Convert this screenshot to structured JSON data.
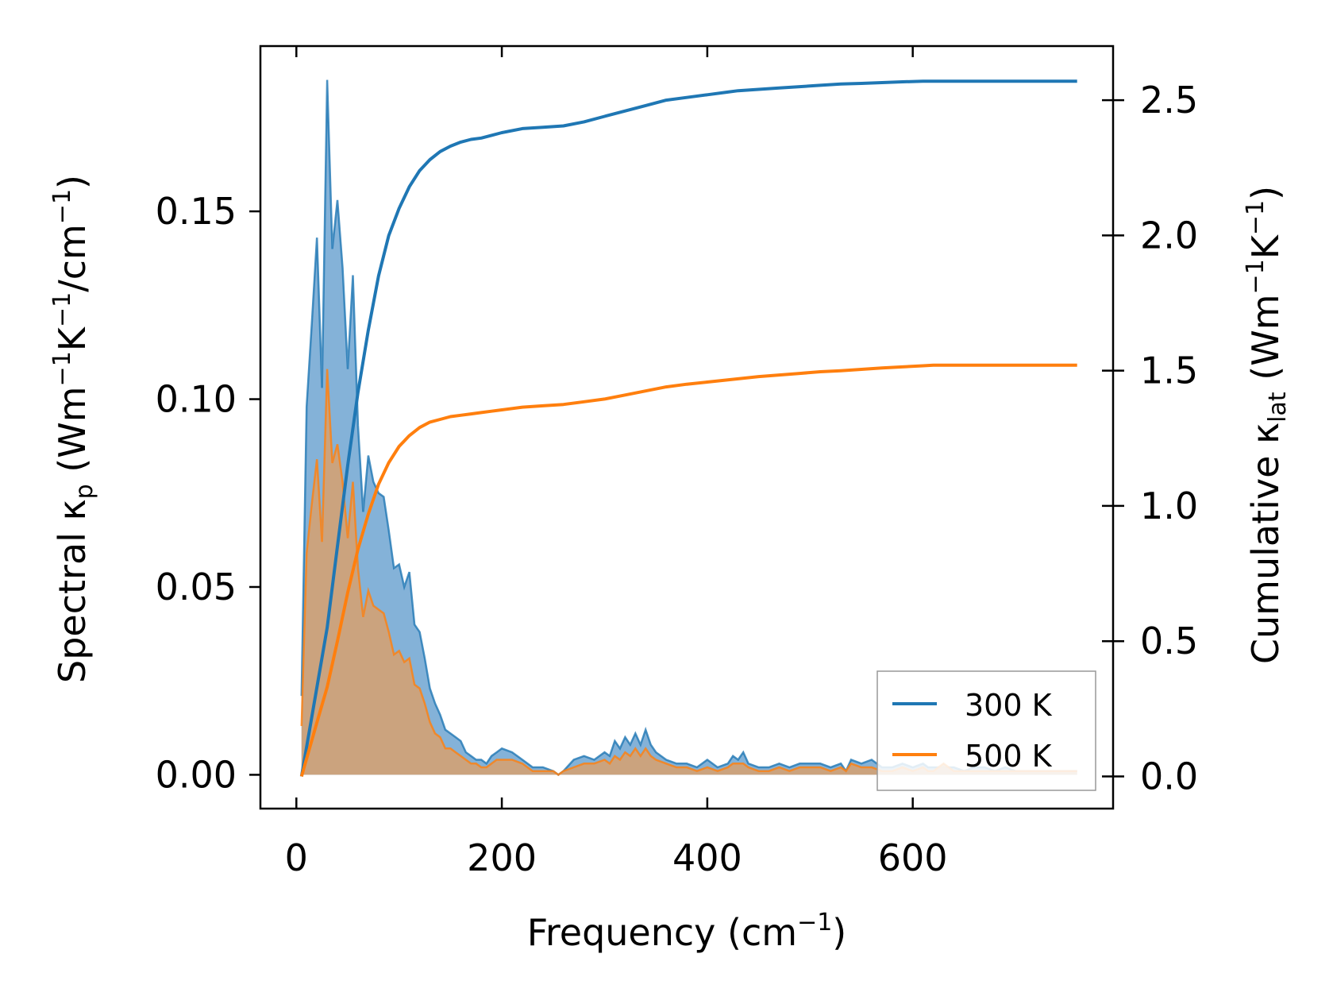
{
  "chart_data": {
    "type": "line",
    "xlabel": {
      "main": "Frequency (cm",
      "sup": "−1",
      "tail": ")"
    },
    "ylabel_left": {
      "a": "Spectral κ",
      "sub_p": "p",
      "b": " (Wm",
      "sup1": "−1",
      "c": "K",
      "sup2": "−1",
      "d": "/cm",
      "sup3": "−1",
      "e": ")"
    },
    "ylabel_right": {
      "a": "Cumulative κ",
      "sub_lat": "lat",
      "b": " (Wm",
      "sup1": "−1",
      "c": "K",
      "sup2": "−1",
      "d": ")"
    },
    "xlim": [
      -35,
      795
    ],
    "ylim_left": [
      -0.009,
      0.194
    ],
    "ylim_right": [
      -0.119,
      2.7
    ],
    "xticks": [
      0,
      200,
      400,
      600
    ],
    "xtick_labels": [
      "0",
      "200",
      "400",
      "600"
    ],
    "yticks_left": [
      0,
      0.05,
      0.1,
      0.15
    ],
    "ytick_labels_left": [
      "0.00",
      "0.05",
      "0.10",
      "0.15"
    ],
    "yticks_right": [
      0,
      0.5,
      1.0,
      1.5,
      2.0,
      2.5
    ],
    "ytick_labels_right": [
      "0.0",
      "0.5",
      "1.0",
      "1.5",
      "2.0",
      "2.5"
    ],
    "legend": {
      "location": "lower-right",
      "entries": [
        "300 K",
        "500 K"
      ]
    },
    "colors": {
      "t300": "#1f77b4",
      "t500": "#ff7f0e",
      "fill300": "#6fa4d1",
      "fill500": "#d3a174"
    },
    "spectral": {
      "x": [
        5,
        10,
        15,
        20,
        25,
        30,
        35,
        40,
        45,
        50,
        55,
        60,
        65,
        70,
        75,
        80,
        85,
        90,
        95,
        100,
        105,
        110,
        115,
        120,
        125,
        130,
        135,
        140,
        145,
        150,
        155,
        160,
        165,
        170,
        175,
        180,
        185,
        190,
        195,
        200,
        210,
        220,
        230,
        240,
        250,
        255,
        260,
        270,
        280,
        290,
        300,
        305,
        310,
        315,
        320,
        325,
        330,
        335,
        340,
        345,
        350,
        360,
        370,
        380,
        390,
        400,
        410,
        420,
        425,
        430,
        435,
        440,
        450,
        460,
        470,
        480,
        490,
        500,
        510,
        520,
        530,
        535,
        540,
        550,
        560,
        570,
        580,
        590,
        600,
        610,
        615,
        620,
        630,
        640,
        650,
        660,
        670,
        680,
        690,
        700,
        710,
        720,
        730,
        740,
        750,
        760
      ],
      "series": [
        {
          "name": "300 K",
          "values": [
            0.021,
            0.098,
            0.12,
            0.143,
            0.103,
            0.185,
            0.14,
            0.153,
            0.135,
            0.108,
            0.133,
            0.093,
            0.07,
            0.085,
            0.078,
            0.075,
            0.074,
            0.065,
            0.055,
            0.056,
            0.05,
            0.054,
            0.04,
            0.038,
            0.031,
            0.023,
            0.019,
            0.016,
            0.012,
            0.011,
            0.01,
            0.009,
            0.006,
            0.005,
            0.004,
            0.004,
            0.003,
            0.005,
            0.006,
            0.007,
            0.006,
            0.004,
            0.002,
            0.002,
            0.001,
            0.0,
            0.001,
            0.004,
            0.005,
            0.004,
            0.006,
            0.005,
            0.009,
            0.007,
            0.01,
            0.008,
            0.011,
            0.008,
            0.012,
            0.008,
            0.006,
            0.004,
            0.003,
            0.003,
            0.002,
            0.004,
            0.002,
            0.003,
            0.005,
            0.004,
            0.006,
            0.003,
            0.002,
            0.002,
            0.003,
            0.002,
            0.003,
            0.003,
            0.003,
            0.002,
            0.003,
            0.001,
            0.004,
            0.003,
            0.004,
            0.002,
            0.002,
            0.003,
            0.002,
            0.003,
            0.002,
            0.002,
            0.002,
            0.002,
            0.001,
            0.002,
            0.002,
            0.001,
            0.002,
            0.001,
            0.001,
            0.001,
            0.001,
            0.001,
            0.001,
            0.001
          ]
        },
        {
          "name": "500 K",
          "values": [
            0.013,
            0.059,
            0.072,
            0.084,
            0.062,
            0.108,
            0.083,
            0.088,
            0.078,
            0.063,
            0.078,
            0.055,
            0.042,
            0.049,
            0.045,
            0.044,
            0.043,
            0.038,
            0.032,
            0.033,
            0.03,
            0.031,
            0.024,
            0.023,
            0.019,
            0.014,
            0.011,
            0.01,
            0.007,
            0.007,
            0.006,
            0.005,
            0.004,
            0.003,
            0.003,
            0.002,
            0.002,
            0.003,
            0.004,
            0.004,
            0.004,
            0.003,
            0.001,
            0.001,
            0.001,
            0.0,
            0.001,
            0.002,
            0.003,
            0.003,
            0.004,
            0.003,
            0.005,
            0.004,
            0.006,
            0.005,
            0.007,
            0.005,
            0.007,
            0.005,
            0.004,
            0.003,
            0.002,
            0.002,
            0.001,
            0.002,
            0.001,
            0.002,
            0.003,
            0.003,
            0.003,
            0.002,
            0.001,
            0.001,
            0.002,
            0.001,
            0.002,
            0.002,
            0.002,
            0.001,
            0.002,
            0.001,
            0.003,
            0.002,
            0.002,
            0.001,
            0.001,
            0.002,
            0.001,
            0.002,
            0.001,
            0.001,
            0.003,
            0.001,
            0.001,
            0.001,
            0.001,
            0.001,
            0.001,
            0.001,
            0.001,
            0.001,
            0.001,
            0.001,
            0.001,
            0.001
          ]
        }
      ]
    },
    "cumulative": {
      "x": [
        5,
        20,
        30,
        40,
        50,
        60,
        70,
        80,
        90,
        100,
        110,
        120,
        130,
        140,
        150,
        160,
        170,
        180,
        190,
        200,
        220,
        240,
        260,
        280,
        300,
        320,
        340,
        360,
        380,
        400,
        420,
        430,
        450,
        470,
        490,
        510,
        530,
        550,
        570,
        590,
        610,
        620,
        640,
        660,
        680,
        700,
        720,
        740,
        760
      ],
      "series": [
        {
          "name": "300 K",
          "values": [
            0.0,
            0.33,
            0.55,
            0.85,
            1.15,
            1.42,
            1.65,
            1.85,
            2.0,
            2.1,
            2.18,
            2.24,
            2.28,
            2.31,
            2.33,
            2.345,
            2.355,
            2.36,
            2.37,
            2.38,
            2.395,
            2.4,
            2.405,
            2.42,
            2.44,
            2.46,
            2.48,
            2.5,
            2.51,
            2.52,
            2.53,
            2.535,
            2.54,
            2.545,
            2.55,
            2.555,
            2.56,
            2.562,
            2.565,
            2.568,
            2.57,
            2.57,
            2.57,
            2.57,
            2.57,
            2.57,
            2.57,
            2.57,
            2.57
          ]
        },
        {
          "name": "500 K",
          "values": [
            0.0,
            0.2,
            0.33,
            0.5,
            0.68,
            0.84,
            0.97,
            1.08,
            1.16,
            1.22,
            1.26,
            1.29,
            1.31,
            1.32,
            1.33,
            1.335,
            1.34,
            1.345,
            1.35,
            1.355,
            1.365,
            1.37,
            1.375,
            1.385,
            1.395,
            1.41,
            1.425,
            1.44,
            1.45,
            1.458,
            1.466,
            1.47,
            1.478,
            1.484,
            1.49,
            1.496,
            1.5,
            1.505,
            1.51,
            1.514,
            1.518,
            1.52,
            1.52,
            1.52,
            1.52,
            1.52,
            1.52,
            1.52,
            1.52
          ]
        }
      ]
    }
  }
}
